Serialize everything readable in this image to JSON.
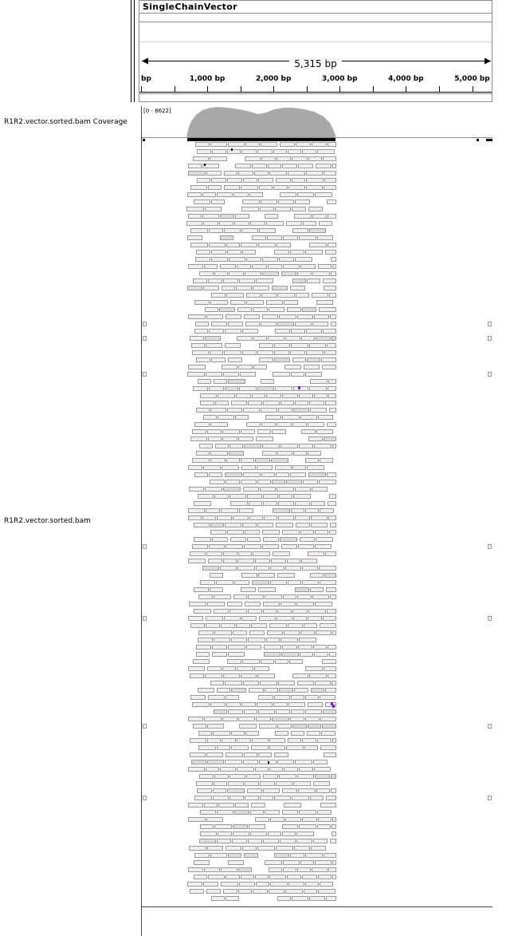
{
  "header": {
    "genome_name": "SingleChainVector",
    "ruler_span": "5,315 bp",
    "ticks": [
      {
        "label": "bp",
        "bp": 0
      },
      {
        "label": "1,000 bp",
        "bp": 1000
      },
      {
        "label": "2,000 bp",
        "bp": 2000
      },
      {
        "label": "3,000 bp",
        "bp": 3000
      },
      {
        "label": "4,000 bp",
        "bp": 4000
      },
      {
        "label": "5,000 bp",
        "bp": 5000
      }
    ]
  },
  "tracks": {
    "coverage_label": "R1R2.vector.sorted.bam Coverage",
    "coverage_range": "[0 - 8622]",
    "alignment_label": "R1R2.vector.sorted.bam"
  },
  "colors": {
    "coverage_fill": "#a8a8a8",
    "read_fill": "#f0f0f0",
    "read_border": "#9a9a9a",
    "mismatch": "#7a22cc"
  }
}
